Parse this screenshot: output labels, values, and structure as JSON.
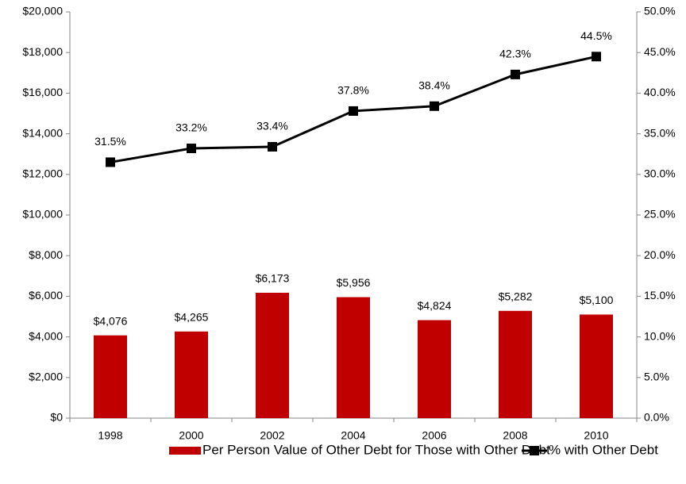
{
  "chart_data": {
    "type": "combo",
    "categories": [
      "1998",
      "2000",
      "2002",
      "2004",
      "2006",
      "2008",
      "2010"
    ],
    "series": [
      {
        "name": "Per Person Value of Other Debt for Those with Other Debt",
        "type": "bar",
        "color": "#c00000",
        "values": [
          4076,
          4265,
          6173,
          5956,
          4824,
          5282,
          5100
        ],
        "value_labels": [
          "$4,076",
          "$4,265",
          "$6,173",
          "$5,956",
          "$4,824",
          "$5,282",
          "$5,100"
        ]
      },
      {
        "name": "% with Other Debt",
        "type": "line",
        "axis": "y2",
        "color": "#000000",
        "values": [
          31.5,
          33.2,
          33.4,
          37.8,
          38.4,
          42.3,
          44.5
        ],
        "value_labels": [
          "31.5%",
          "33.2%",
          "33.4%",
          "37.8%",
          "38.4%",
          "42.3%",
          "44.5%"
        ]
      }
    ],
    "ylim": [
      0,
      20000
    ],
    "yticks": [
      {
        "value": 0,
        "label": "$0"
      },
      {
        "value": 2000,
        "label": "$2,000"
      },
      {
        "value": 4000,
        "label": "$4,000"
      },
      {
        "value": 6000,
        "label": "$6,000"
      },
      {
        "value": 8000,
        "label": "$8,000"
      },
      {
        "value": 10000,
        "label": "$10,000"
      },
      {
        "value": 12000,
        "label": "$12,000"
      },
      {
        "value": 14000,
        "label": "$14,000"
      },
      {
        "value": 16000,
        "label": "$16,000"
      },
      {
        "value": 18000,
        "label": "$18,000"
      },
      {
        "value": 20000,
        "label": "$20,000"
      }
    ],
    "y2lim": [
      0,
      50
    ],
    "y2ticks": [
      {
        "value": 0,
        "label": "0.0%"
      },
      {
        "value": 5,
        "label": "5.0%"
      },
      {
        "value": 10,
        "label": "10.0%"
      },
      {
        "value": 15,
        "label": "15.0%"
      },
      {
        "value": 20,
        "label": "20.0%"
      },
      {
        "value": 25,
        "label": "25.0%"
      },
      {
        "value": 30,
        "label": "30.0%"
      },
      {
        "value": 35,
        "label": "35.0%"
      },
      {
        "value": 40,
        "label": "40.0%"
      },
      {
        "value": 45,
        "label": "45.0%"
      },
      {
        "value": 50,
        "label": "50.0%"
      }
    ],
    "grid": false,
    "legend": "bottom"
  }
}
